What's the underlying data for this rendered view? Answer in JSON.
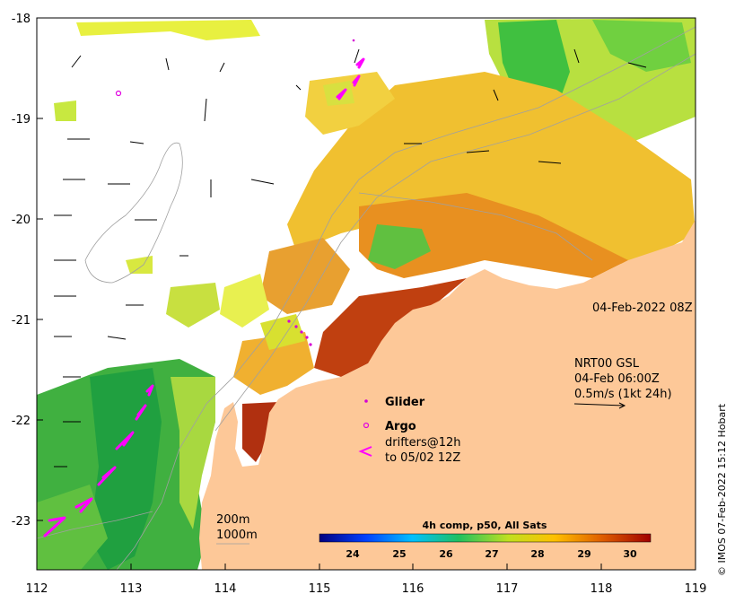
{
  "map": {
    "axes": {
      "x_ticks": [
        "112",
        "113",
        "114",
        "115",
        "116",
        "117",
        "118",
        "119"
      ],
      "y_ticks": [
        "-18",
        "-19",
        "-20",
        "-21",
        "-22",
        "-23"
      ]
    },
    "timestamp": "04-Feb-2022 08Z",
    "current_block": {
      "line1": "NRT00 GSL",
      "line2": "04-Feb 06:00Z",
      "line3": "0.5m/s (1kt 24h)"
    },
    "legend": {
      "glider": "Glider",
      "argo": "Argo",
      "drifters_line1": "drifters@12h",
      "drifters_line2": "to 05/02 12Z",
      "glider_color": "#d400d4",
      "argo_color": "#e000e0",
      "drifter_color": "#ff00ff"
    },
    "contours": {
      "label_200": "200m",
      "label_1000": "1000m"
    },
    "colorbar": {
      "title": "4h comp, p50, All Sats",
      "ticks": [
        "24",
        "25",
        "26",
        "27",
        "28",
        "29",
        "30"
      ],
      "stops": [
        "#00007f",
        "#0040ff",
        "#00c0ff",
        "#20c060",
        "#c0e020",
        "#ffc000",
        "#e06000",
        "#a00000"
      ]
    },
    "credit": "© IMOS 07-Feb-2022 15:12 Hobart",
    "land_color": "#fdc898"
  }
}
